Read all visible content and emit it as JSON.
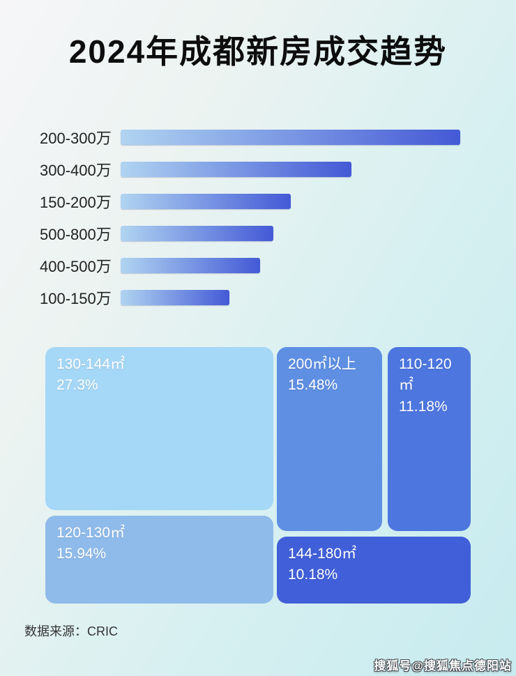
{
  "page": {
    "title": "2024年成都新房成交趋势"
  },
  "colors": {
    "bar_gradient_start": "#b0d4f1",
    "bar_gradient_end": "#4459d6",
    "background_start": "#f6f6f8",
    "background_end": "#c7ebef"
  },
  "bar_chart": {
    "rows": [
      {
        "label": "200-300万",
        "length_pct": 100
      },
      {
        "label": "300-400万",
        "length_pct": 68
      },
      {
        "label": "150-200万",
        "length_pct": 50
      },
      {
        "label": "500-800万",
        "length_pct": 45
      },
      {
        "label": "400-500万",
        "length_pct": 41
      },
      {
        "label": "100-150万",
        "length_pct": 32
      }
    ]
  },
  "treemap": {
    "cells": [
      {
        "label": "130-144㎡",
        "value": "27.3%",
        "color": "#a5d7f6"
      },
      {
        "label": "200㎡以上",
        "value": "15.48%",
        "color": "#5f8fe3"
      },
      {
        "label": "110-120㎡",
        "value": "11.18%",
        "color": "#4d76df"
      },
      {
        "label": "120-130㎡",
        "value": "15.94%",
        "color": "#8fbbea"
      },
      {
        "label": "144-180㎡",
        "value": "10.18%",
        "color": "#415fd8"
      }
    ]
  },
  "footer": {
    "source_label": "数据来源：CRIC"
  },
  "watermark": {
    "text": "搜狐号@搜狐焦点德阳站"
  },
  "chart_data": [
    {
      "type": "bar",
      "orientation": "horizontal",
      "title": "2024年成都新房成交趋势",
      "categories": [
        "200-300万",
        "300-400万",
        "150-200万",
        "500-800万",
        "400-500万",
        "100-150万"
      ],
      "values_pct_of_longest_bar": [
        100,
        68,
        50,
        45,
        41,
        32
      ],
      "value_labels_shown": false,
      "axis_shown": false,
      "note": "bar lengths estimated from pixels; no numeric axis or data labels in image"
    },
    {
      "type": "treemap",
      "title": "2024年成都新房成交趋势",
      "categories": [
        "130-144㎡",
        "200㎡以上",
        "110-120㎡",
        "120-130㎡",
        "144-180㎡"
      ],
      "values": [
        27.3,
        15.48,
        11.18,
        15.94,
        10.18
      ],
      "unit": "%",
      "source": "CRIC"
    }
  ]
}
